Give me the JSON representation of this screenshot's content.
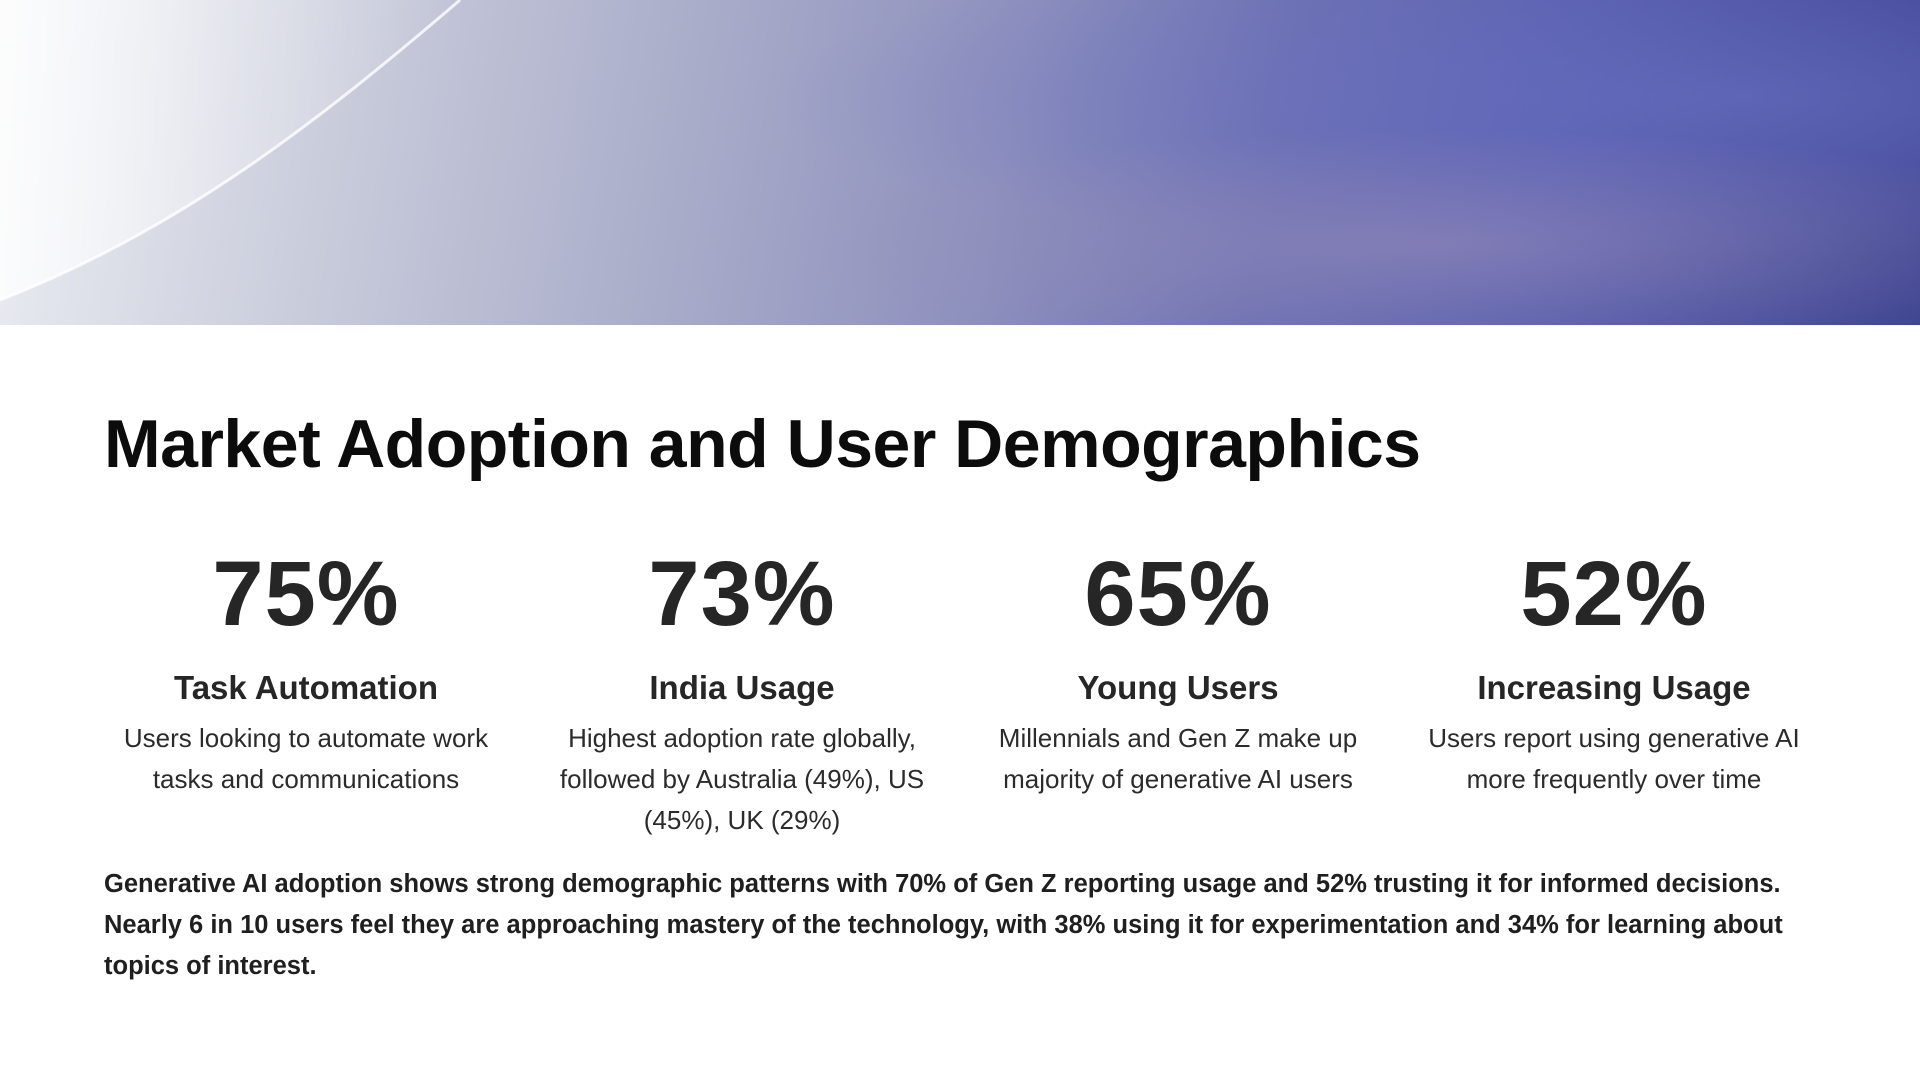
{
  "slide": {
    "title": "Market Adoption and User Demographics",
    "stats": [
      {
        "value": "75%",
        "label": "Task Automation",
        "description": "Users looking to automate work tasks and communications"
      },
      {
        "value": "73%",
        "label": "India Usage",
        "description": "Highest adoption rate globally, followed by Australia (49%), US (45%), UK (29%)"
      },
      {
        "value": "65%",
        "label": "Young Users",
        "description": "Millennials and Gen Z make up majority of generative AI users"
      },
      {
        "value": "52%",
        "label": "Increasing Usage",
        "description": "Users report using generative AI more frequently over time"
      }
    ],
    "summary": "Generative AI adoption shows strong demographic patterns with 70% of Gen Z reporting usage and 52% trusting it for informed decisions. Nearly 6 in 10 users feel they are approaching mastery of the technology, with 38% using it for experimentation and 34% for learning about topics of interest."
  },
  "colors": {
    "banner_light": "#eceef3",
    "banner_dark": "#3f4591",
    "text": "#0c0c0c"
  }
}
